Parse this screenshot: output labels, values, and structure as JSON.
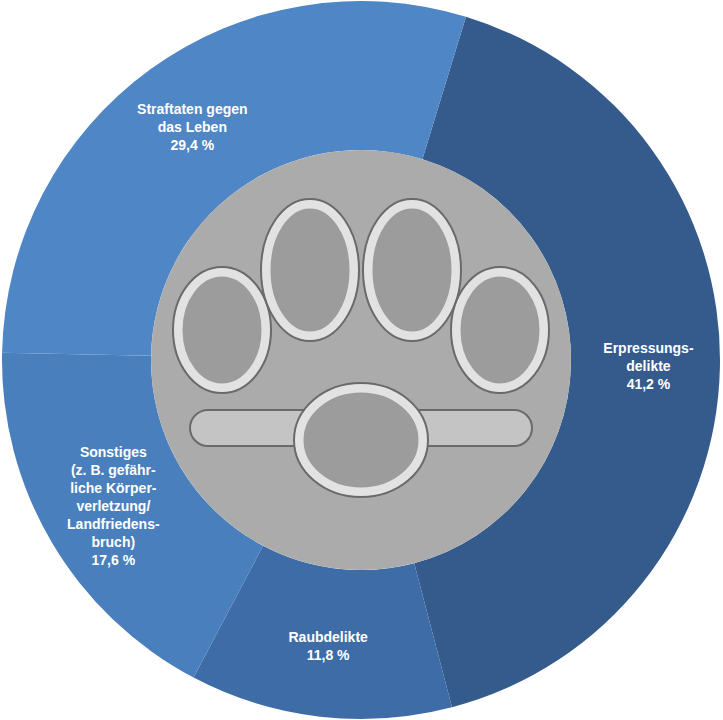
{
  "chart_data": {
    "type": "pie",
    "categories": [
      "Erpressungs-\ndelikte",
      "Raubdelikte",
      "Sonstiges\n(z. B. gefähr-\nliche Körper-\nverletzung/\nLandfriedens-\nbruch)",
      "Straftaten gegen\ndas Leben"
    ],
    "values": [
      41.2,
      11.8,
      17.6,
      29.4
    ],
    "value_labels": [
      "41,2 %",
      "11,8 %",
      "17,6 %",
      "29,4 %"
    ],
    "colors": [
      "#355b8c",
      "#3e6ca6",
      "#4a7fbd",
      "#4f86c6"
    ],
    "data_labels": true
  }
}
